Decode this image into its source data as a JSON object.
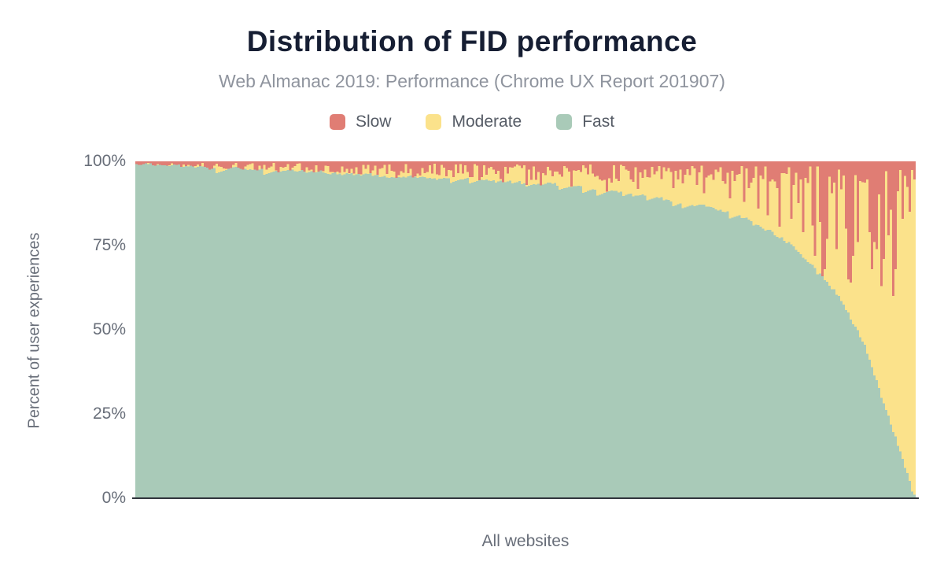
{
  "chart_data": {
    "type": "bar",
    "subtype": "stacked-percent-distribution-area",
    "title": "Distribution of FID performance",
    "subtitle": "Web Almanac 2019: Performance (Chrome UX Report 201907)",
    "xlabel": "All websites",
    "ylabel": "Percent of user experiences",
    "ylim": [
      0,
      100
    ],
    "grid": "off",
    "legend_position": "top-center",
    "y_ticks": [
      {
        "label": "100%",
        "value": 100
      },
      {
        "label": "75%",
        "value": 75
      },
      {
        "label": "50%",
        "value": 50
      },
      {
        "label": "25%",
        "value": 25
      },
      {
        "label": "0%",
        "value": 0
      }
    ],
    "series": [
      {
        "name": "Slow",
        "color": "#e07d74"
      },
      {
        "name": "Moderate",
        "color": "#fbe28b"
      },
      {
        "name": "Fast",
        "color": "#a9cab8"
      }
    ],
    "sort_order": "websites sorted descending by Fast share; each bar stacks to 100%",
    "n_bars": 330,
    "noise_seed": 7,
    "fast_curve_anchors": [
      [
        0,
        99.5
      ],
      [
        0.065,
        98.6
      ],
      [
        0.129,
        98.1
      ],
      [
        0.23,
        97.0
      ],
      [
        0.34,
        95.4
      ],
      [
        0.441,
        94.6
      ],
      [
        0.532,
        93.2
      ],
      [
        0.633,
        90.7
      ],
      [
        0.683,
        88.6
      ],
      [
        0.734,
        86.6
      ],
      [
        0.784,
        83.2
      ],
      [
        0.834,
        76.6
      ],
      [
        0.868,
        69.6
      ],
      [
        0.902,
        60.0
      ],
      [
        0.9355,
        46.0
      ],
      [
        0.9607,
        28.0
      ],
      [
        0.9859,
        11.0
      ],
      [
        0.996,
        3.0
      ],
      [
        1,
        1.0
      ]
    ],
    "slow_mean_thickness_anchors": [
      [
        0,
        1.1
      ],
      [
        0.15,
        1.8
      ],
      [
        0.3,
        2.4
      ],
      [
        0.45,
        3.0
      ],
      [
        0.6,
        3.4
      ],
      [
        0.75,
        4.2
      ],
      [
        0.85,
        5.2
      ],
      [
        0.95,
        6.0
      ],
      [
        1,
        6.0
      ]
    ],
    "slow_spikes_frac_to_bottom_pct": [
      [
        0.355,
        94.5
      ],
      [
        0.44,
        91.8
      ],
      [
        0.5,
        93.0
      ],
      [
        0.56,
        92.5
      ],
      [
        0.606,
        91.0
      ],
      [
        0.645,
        91.8
      ],
      [
        0.69,
        92.0
      ],
      [
        0.73,
        90.5
      ],
      [
        0.762,
        89.0
      ],
      [
        0.78,
        88.0
      ],
      [
        0.798,
        86.0
      ],
      [
        0.812,
        84.0
      ],
      [
        0.826,
        80.6
      ],
      [
        0.843,
        83.0
      ],
      [
        0.858,
        79.0
      ],
      [
        0.868,
        81.0
      ],
      [
        0.878,
        82.0
      ],
      [
        0.888,
        77.0
      ],
      [
        0.9,
        74.0
      ],
      [
        0.912,
        80.0
      ],
      [
        0.928,
        76.0
      ],
      [
        0.942,
        79.0
      ],
      [
        0.952,
        74.0
      ],
      [
        0.966,
        78.0
      ],
      [
        0.985,
        83.0
      ],
      [
        0.993,
        85.0
      ],
      [
        0.873,
        72.0
      ],
      [
        0.88,
        60.0
      ],
      [
        0.915,
        65.0
      ],
      [
        0.919,
        64.0
      ],
      [
        0.945,
        68.0
      ],
      [
        0.958,
        63.0
      ],
      [
        0.973,
        60.0
      ]
    ],
    "palette": {
      "title_color": "#161e33",
      "subtitle_color": "#8f949e",
      "axis_text_color": "#686e79",
      "axis_line_color": "#30343c",
      "background": "#ffffff"
    }
  }
}
